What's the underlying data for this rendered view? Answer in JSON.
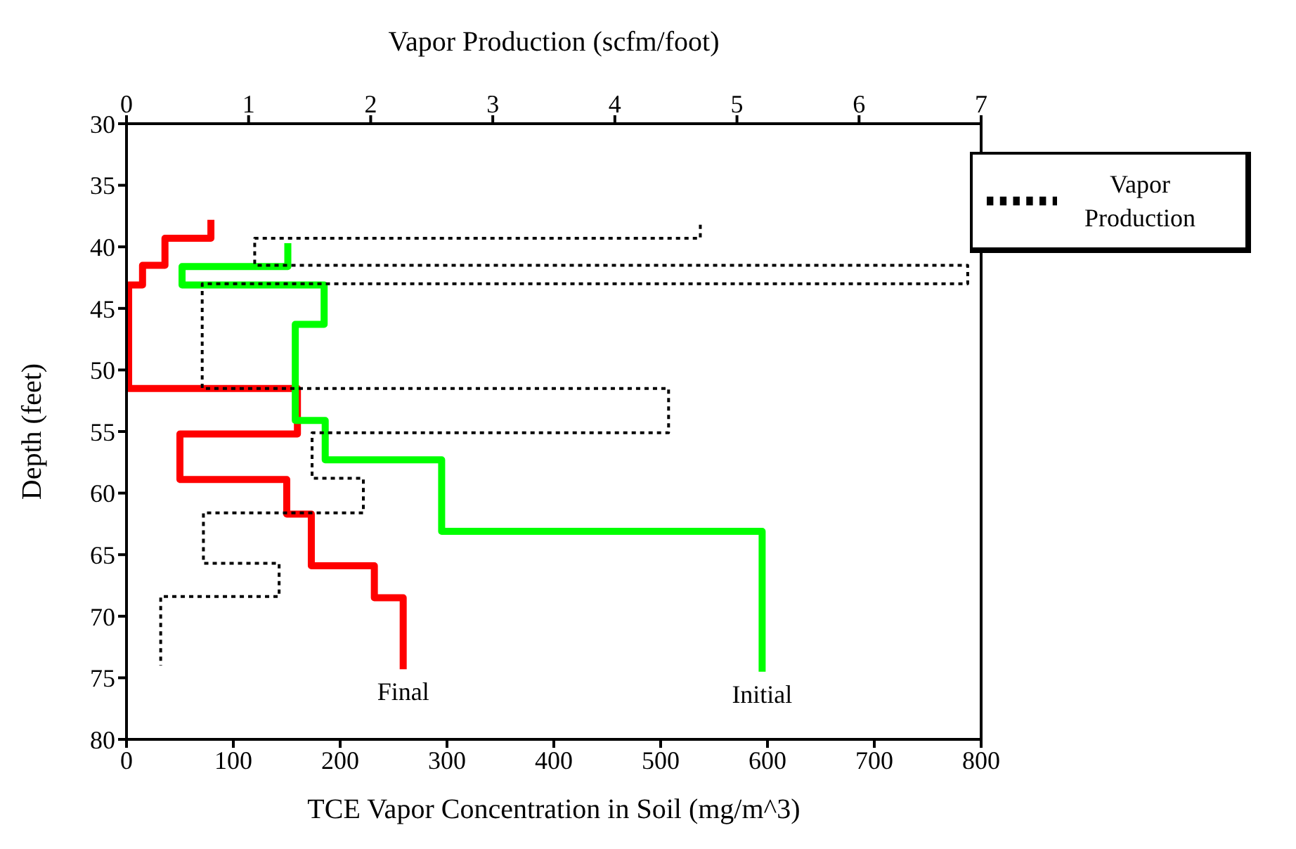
{
  "chart_data": {
    "type": "line",
    "xlabel": "TCE Vapor Concentration in Soil (mg/m^3)",
    "x2label": "Vapor Production (scfm/foot)",
    "ylabel": "Depth (feet)",
    "xlim": [
      0,
      800
    ],
    "xticks": [
      0,
      100,
      200,
      300,
      400,
      500,
      600,
      700,
      800
    ],
    "x2lim": [
      0,
      7
    ],
    "x2ticks": [
      0,
      1,
      2,
      3,
      4,
      5,
      6,
      7
    ],
    "ylim": [
      80,
      30
    ],
    "yticks": [
      30,
      35,
      40,
      45,
      50,
      55,
      60,
      65,
      70,
      75,
      80
    ],
    "grid": false,
    "legend": "top right",
    "marker": "none",
    "series": [
      {
        "name": "Final",
        "color": "#ff0000",
        "line_style": "solid",
        "x": [
          79,
          79,
          36,
          36,
          15,
          15,
          2,
          2,
          160,
          160,
          50,
          50,
          150,
          150,
          173,
          173,
          232,
          232,
          259,
          259
        ],
        "values": [
          37.8,
          39.3,
          39.3,
          41.5,
          41.5,
          43.1,
          43.1,
          51.5,
          51.5,
          55.2,
          55.2,
          58.9,
          58.9,
          61.7,
          61.7,
          65.9,
          65.9,
          68.5,
          68.5,
          74.3
        ]
      },
      {
        "name": "Initial",
        "color": "#00ff00",
        "line_style": "solid",
        "x": [
          151,
          151,
          52,
          52,
          185,
          185,
          158,
          158,
          186,
          186,
          295,
          295,
          595,
          595
        ],
        "values": [
          39.7,
          41.6,
          41.6,
          43.1,
          43.1,
          46.3,
          46.3,
          54.1,
          54.1,
          57.3,
          57.3,
          63.1,
          63.1,
          74.5
        ]
      },
      {
        "name": "Vapor Production",
        "axis": "x2",
        "color": "#000000",
        "line_style": "dotted",
        "x": [
          4.7,
          4.7,
          1.05,
          1.05,
          6.89,
          6.89,
          0.62,
          0.62,
          4.44,
          4.44,
          1.52,
          1.52,
          1.94,
          1.94,
          0.63,
          0.63,
          1.25,
          1.25,
          0.28,
          0.28
        ],
        "values": [
          38.2,
          39.3,
          39.3,
          41.5,
          41.5,
          43.0,
          43.0,
          51.5,
          51.5,
          55.1,
          55.1,
          58.8,
          58.8,
          61.6,
          61.6,
          65.7,
          65.7,
          68.4,
          68.4,
          74.0
        ]
      }
    ]
  }
}
